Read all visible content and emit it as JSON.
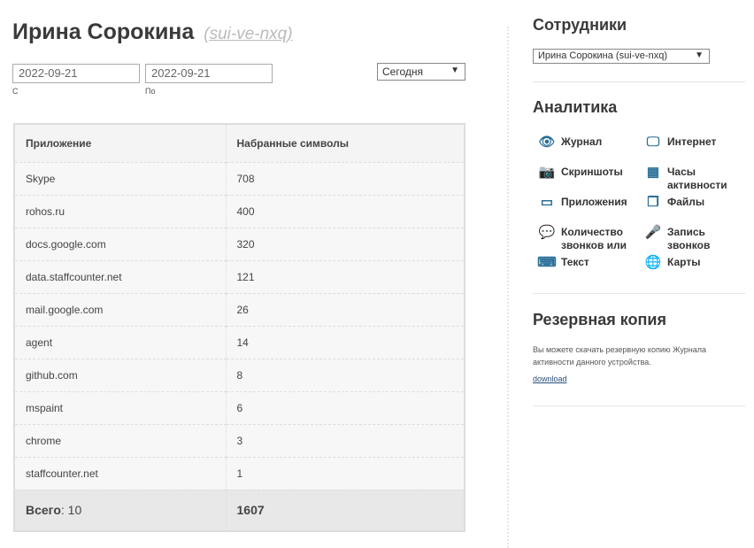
{
  "header": {
    "name": "Ирина Сорокина",
    "id_link": "(sui-ve-nxq)"
  },
  "filters": {
    "from_value": "2022-09-21",
    "from_label": "С",
    "to_value": "2022-09-21",
    "to_label": "По",
    "period": "Сегодня"
  },
  "table": {
    "columns": [
      "Приложение",
      "Набранные символы"
    ],
    "rows": [
      [
        "Skype",
        "708"
      ],
      [
        "rohos.ru",
        "400"
      ],
      [
        "docs.google.com",
        "320"
      ],
      [
        "data.staffcounter.net",
        "121"
      ],
      [
        "mail.google.com",
        "26"
      ],
      [
        "agent",
        "14"
      ],
      [
        "github.com",
        "8"
      ],
      [
        "mspaint",
        "6"
      ],
      [
        "chrome",
        "3"
      ],
      [
        "staffcounter.net",
        "1"
      ]
    ],
    "total_label": "Всего",
    "total_count": ": 10",
    "total_value": "1607"
  },
  "sidebar": {
    "employees_title": "Сотрудники",
    "employee_selected": "Ирина Сорокина (sui-ve-nxq)",
    "analytics_title": "Аналитика",
    "analytics": [
      {
        "label": "Журнал",
        "icon": "eye-icon"
      },
      {
        "label": "Интернет",
        "icon": "monitor-icon"
      },
      {
        "label": "Скриншоты",
        "icon": "camera-icon"
      },
      {
        "label": "Часы активности",
        "icon": "calendar-icon"
      },
      {
        "label": "Приложения",
        "icon": "window-icon"
      },
      {
        "label": "Файлы",
        "icon": "files-icon"
      },
      {
        "label": "Количество звонков или",
        "icon": "chat-icon"
      },
      {
        "label": "Запись звонков",
        "icon": "microphone-icon"
      },
      {
        "label": "Текст",
        "icon": "keyboard-icon"
      },
      {
        "label": "Карты",
        "icon": "globe-icon"
      }
    ],
    "backup_title": "Резервная копия",
    "backup_text": "Вы можете скачать резервную копию Журнала активности данного устройства.",
    "download": "download"
  },
  "colors": {
    "accent": "#2a6f97",
    "link": "#2a4f7a"
  }
}
